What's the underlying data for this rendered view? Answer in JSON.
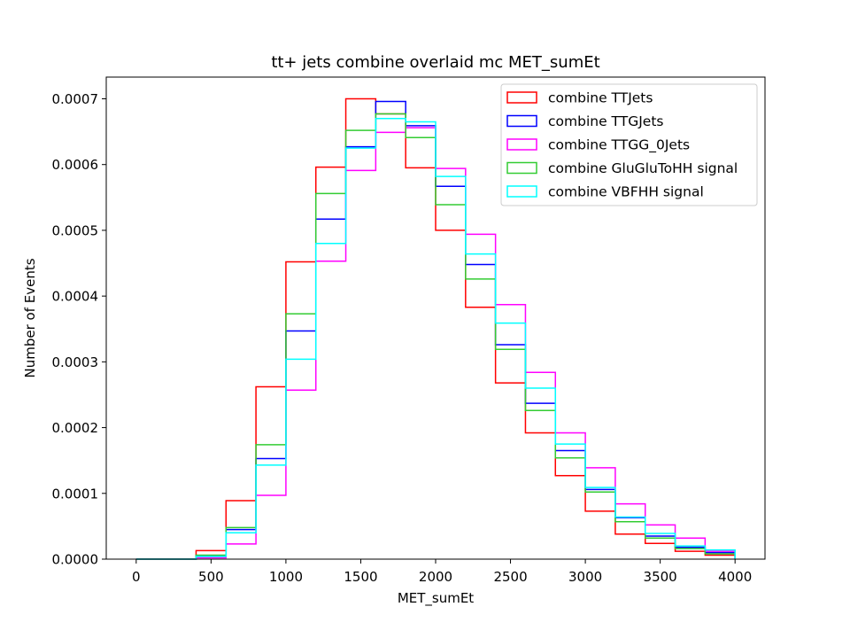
{
  "chart_data": {
    "type": "step-histogram",
    "title": "tt+ jets combine overlaid mc MET_sumEt",
    "xlabel": "MET_sumEt",
    "ylabel": "Number of Events",
    "xlim": [
      -200,
      4200
    ],
    "ylim": [
      0,
      0.000733
    ],
    "xticks": [
      0,
      500,
      1000,
      1500,
      2000,
      2500,
      3000,
      3500,
      4000
    ],
    "xtick_labels": [
      "0",
      "500",
      "1000",
      "1500",
      "2000",
      "2500",
      "3000",
      "3500",
      "4000"
    ],
    "yticks": [
      0,
      0.0001,
      0.0002,
      0.0003,
      0.0004,
      0.0005,
      0.0006,
      0.0007
    ],
    "ytick_labels": [
      "0.0000",
      "0.0001",
      "0.0002",
      "0.0003",
      "0.0004",
      "0.0005",
      "0.0006",
      "0.0007"
    ],
    "bin_edges": [
      0,
      200,
      400,
      600,
      800,
      1000,
      1200,
      1400,
      1600,
      1800,
      2000,
      2200,
      2400,
      2600,
      2800,
      3000,
      3200,
      3400,
      3600,
      3800,
      4000
    ],
    "legend_position": "top-right",
    "series": [
      {
        "name": "combine TTJets",
        "color": "#ff0000",
        "values": [
          0,
          0.0,
          1.3e-05,
          8.9e-05,
          0.000262,
          0.000452,
          0.000596,
          0.0007,
          0.000677,
          0.000595,
          0.0005,
          0.000383,
          0.000268,
          0.000192,
          0.000127,
          7.3e-05,
          3.8e-05,
          2.4e-05,
          1.2e-05,
          6e-06
        ]
      },
      {
        "name": "combine TTGJets",
        "color": "#0000ff",
        "values": [
          0,
          0.0,
          5e-06,
          4.5e-05,
          0.000153,
          0.000347,
          0.000517,
          0.000627,
          0.000696,
          0.000659,
          0.000567,
          0.000448,
          0.000326,
          0.000237,
          0.000165,
          0.000106,
          6.3e-05,
          3.5e-05,
          1.8e-05,
          1e-05
        ]
      },
      {
        "name": "combine TTGG_0Jets",
        "color": "#ff00ff",
        "values": [
          0,
          0.0,
          2e-06,
          2.3e-05,
          9.7e-05,
          0.000257,
          0.000453,
          0.000591,
          0.000649,
          0.000656,
          0.000594,
          0.000494,
          0.000387,
          0.000284,
          0.000192,
          0.000139,
          8.4e-05,
          5.2e-05,
          3.2e-05,
          1.2e-05
        ]
      },
      {
        "name": "combine GluGluToHH signal",
        "color": "#33cc33",
        "values": [
          0,
          0.0,
          6e-06,
          4.8e-05,
          0.000174,
          0.000373,
          0.000556,
          0.000652,
          0.000677,
          0.000641,
          0.000539,
          0.000426,
          0.000319,
          0.000226,
          0.000154,
          0.000102,
          5.7e-05,
          3.2e-05,
          1.6e-05,
          8e-06
        ]
      },
      {
        "name": "combine VBFHH signal",
        "color": "#00ffff",
        "values": [
          0,
          0.0,
          4e-06,
          4e-05,
          0.000143,
          0.000304,
          0.00048,
          0.000625,
          0.00067,
          0.000665,
          0.000582,
          0.000464,
          0.000359,
          0.00026,
          0.000175,
          0.000109,
          6.4e-05,
          3.9e-05,
          2e-05,
          1.4e-05
        ]
      }
    ]
  }
}
